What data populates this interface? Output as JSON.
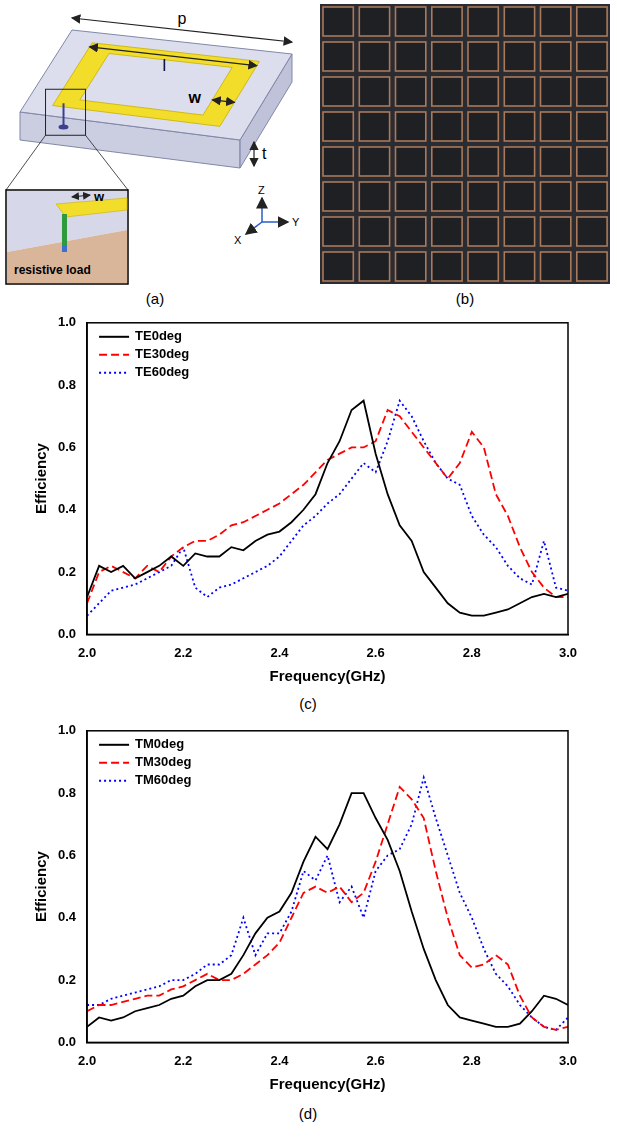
{
  "panel_labels": [
    "(a)",
    "(b)",
    "(c)",
    "(d)"
  ],
  "diagram": {
    "dimension_labels": {
      "p": "p",
      "l": "l",
      "w": "w",
      "t": "t"
    },
    "inset_labels": {
      "w": "w",
      "load": "resistive load"
    },
    "axis_labels": {
      "x": "X",
      "y": "Y",
      "z": "Z"
    }
  },
  "chart_data": [
    {
      "type": "line",
      "x_label": "Frequency(GHz)",
      "y_label": "Efficiency",
      "x": [
        2.0,
        2.025,
        2.05,
        2.075,
        2.1,
        2.125,
        2.15,
        2.175,
        2.2,
        2.225,
        2.25,
        2.275,
        2.3,
        2.325,
        2.35,
        2.375,
        2.4,
        2.425,
        2.45,
        2.475,
        2.5,
        2.525,
        2.55,
        2.575,
        2.6,
        2.625,
        2.65,
        2.675,
        2.7,
        2.725,
        2.75,
        2.775,
        2.8,
        2.825,
        2.85,
        2.875,
        2.9,
        2.925,
        2.95,
        2.975,
        3.0
      ],
      "series": [
        {
          "name": "TE0deg",
          "color": "#000000",
          "line_style": "solid",
          "values": [
            0.12,
            0.22,
            0.2,
            0.22,
            0.18,
            0.2,
            0.22,
            0.25,
            0.22,
            0.26,
            0.25,
            0.25,
            0.28,
            0.27,
            0.3,
            0.32,
            0.33,
            0.36,
            0.4,
            0.45,
            0.55,
            0.62,
            0.72,
            0.75,
            0.58,
            0.45,
            0.35,
            0.3,
            0.2,
            0.15,
            0.1,
            0.07,
            0.06,
            0.06,
            0.07,
            0.08,
            0.1,
            0.12,
            0.13,
            0.12,
            0.13
          ]
        },
        {
          "name": "TE30deg",
          "color": "#ff0000",
          "line_style": "dashed",
          "values": [
            0.1,
            0.2,
            0.22,
            0.2,
            0.18,
            0.22,
            0.2,
            0.25,
            0.28,
            0.3,
            0.3,
            0.32,
            0.35,
            0.36,
            0.38,
            0.4,
            0.42,
            0.45,
            0.48,
            0.52,
            0.56,
            0.58,
            0.6,
            0.6,
            0.62,
            0.72,
            0.7,
            0.65,
            0.6,
            0.55,
            0.5,
            0.55,
            0.65,
            0.6,
            0.45,
            0.38,
            0.28,
            0.2,
            0.15,
            0.12,
            0.12
          ]
        },
        {
          "name": "TE60deg",
          "color": "#0000ff",
          "line_style": "dotted",
          "values": [
            0.06,
            0.1,
            0.14,
            0.15,
            0.16,
            0.18,
            0.2,
            0.22,
            0.28,
            0.15,
            0.12,
            0.15,
            0.16,
            0.18,
            0.2,
            0.22,
            0.25,
            0.3,
            0.35,
            0.38,
            0.42,
            0.45,
            0.5,
            0.55,
            0.52,
            0.62,
            0.75,
            0.7,
            0.62,
            0.55,
            0.5,
            0.48,
            0.38,
            0.32,
            0.28,
            0.22,
            0.18,
            0.16,
            0.3,
            0.15,
            0.14
          ]
        }
      ],
      "xlim": [
        2.0,
        3.0
      ],
      "xticks": [
        {
          "value": 2.0,
          "label": "2.0"
        },
        2.2,
        2.4,
        2.6,
        2.8,
        {
          "value": 3.0,
          "label": "3.0"
        }
      ],
      "ylim": [
        0.0,
        1.0
      ],
      "yticks": [
        {
          "value": 0.0,
          "label": "0.0"
        },
        0.2,
        0.4,
        0.6,
        0.8,
        {
          "value": 1.0,
          "label": "1.0"
        }
      ],
      "grid": false,
      "legend": "upper left"
    },
    {
      "type": "line",
      "x_label": "Frequency(GHz)",
      "y_label": "Efficiency",
      "x": [
        2.0,
        2.025,
        2.05,
        2.075,
        2.1,
        2.125,
        2.15,
        2.175,
        2.2,
        2.225,
        2.25,
        2.275,
        2.3,
        2.325,
        2.35,
        2.375,
        2.4,
        2.425,
        2.45,
        2.475,
        2.5,
        2.525,
        2.55,
        2.575,
        2.6,
        2.625,
        2.65,
        2.675,
        2.7,
        2.725,
        2.75,
        2.775,
        2.8,
        2.825,
        2.85,
        2.875,
        2.9,
        2.925,
        2.95,
        2.975,
        3.0
      ],
      "series": [
        {
          "name": "TM0deg",
          "color": "#000000",
          "line_style": "solid",
          "values": [
            0.05,
            0.08,
            0.07,
            0.08,
            0.1,
            0.11,
            0.12,
            0.14,
            0.15,
            0.18,
            0.2,
            0.2,
            0.22,
            0.28,
            0.35,
            0.4,
            0.42,
            0.48,
            0.58,
            0.66,
            0.62,
            0.7,
            0.8,
            0.8,
            0.72,
            0.65,
            0.55,
            0.42,
            0.3,
            0.2,
            0.12,
            0.08,
            0.07,
            0.06,
            0.05,
            0.05,
            0.06,
            0.1,
            0.15,
            0.14,
            0.12
          ]
        },
        {
          "name": "TM30deg",
          "color": "#ff0000",
          "line_style": "dashed",
          "values": [
            0.1,
            0.12,
            0.12,
            0.13,
            0.14,
            0.15,
            0.15,
            0.17,
            0.18,
            0.2,
            0.22,
            0.2,
            0.2,
            0.22,
            0.25,
            0.28,
            0.32,
            0.4,
            0.48,
            0.5,
            0.48,
            0.5,
            0.45,
            0.48,
            0.58,
            0.7,
            0.82,
            0.78,
            0.72,
            0.55,
            0.4,
            0.28,
            0.24,
            0.25,
            0.28,
            0.25,
            0.15,
            0.08,
            0.05,
            0.04,
            0.05
          ]
        },
        {
          "name": "TM60deg",
          "color": "#0000ff",
          "line_style": "dotted",
          "values": [
            0.12,
            0.12,
            0.14,
            0.15,
            0.16,
            0.17,
            0.18,
            0.2,
            0.2,
            0.22,
            0.25,
            0.25,
            0.28,
            0.4,
            0.28,
            0.35,
            0.35,
            0.42,
            0.55,
            0.52,
            0.6,
            0.45,
            0.5,
            0.4,
            0.55,
            0.6,
            0.62,
            0.7,
            0.85,
            0.72,
            0.6,
            0.48,
            0.4,
            0.3,
            0.22,
            0.18,
            0.12,
            0.08,
            0.05,
            0.04,
            0.08
          ]
        }
      ],
      "xlim": [
        2.0,
        3.0
      ],
      "xticks": [
        {
          "value": 2.0,
          "label": "2.0"
        },
        2.2,
        2.4,
        2.6,
        2.8,
        {
          "value": 3.0,
          "label": "3.0"
        }
      ],
      "ylim": [
        0.0,
        1.0
      ],
      "yticks": [
        {
          "value": 0.0,
          "label": "0.0"
        },
        0.2,
        0.4,
        0.6,
        0.8,
        {
          "value": 1.0,
          "label": "1.0"
        }
      ],
      "grid": false,
      "legend": "upper left"
    }
  ]
}
